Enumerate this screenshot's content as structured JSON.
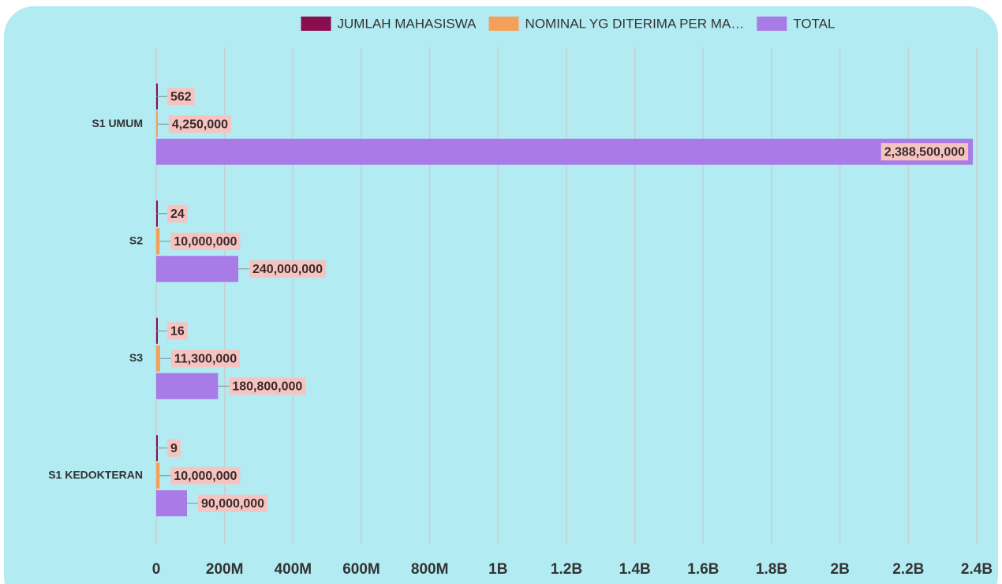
{
  "chart_data": {
    "type": "bar",
    "orientation": "horizontal",
    "categories": [
      "S1 UMUM",
      "S2",
      "S3",
      "S1 KEDOKTERAN"
    ],
    "series": [
      {
        "name": "JUMLAH MAHASISWA",
        "color": "#880e4f",
        "values": [
          562,
          24,
          16,
          9
        ],
        "value_labels": [
          "562",
          "24",
          "16",
          "9"
        ]
      },
      {
        "name": "NOMINAL YG DITERIMA PER MA…",
        "color": "#f4a05a",
        "values": [
          4250000,
          10000000,
          11300000,
          10000000
        ],
        "value_labels": [
          "4,250,000",
          "10,000,000",
          "11,300,000",
          "10,000,000"
        ]
      },
      {
        "name": "TOTAL",
        "color": "#a97be6",
        "values": [
          2388500000,
          240000000,
          180800000,
          90000000
        ],
        "value_labels": [
          "2,388,500,000",
          "240,000,000",
          "180,800,000",
          "90,000,000"
        ]
      }
    ],
    "xlim": [
      0,
      2400000000
    ],
    "xticks": [
      0,
      {
        "value": 200000000,
        "label": "200M"
      },
      {
        "value": 400000000,
        "label": "400M"
      },
      {
        "value": 600000000,
        "label": "600M"
      },
      {
        "value": 800000000,
        "label": "800M"
      },
      {
        "value": 1000000000,
        "label": "1B"
      },
      {
        "value": 1200000000,
        "label": "1.2B"
      },
      {
        "value": 1400000000,
        "label": "1.4B"
      },
      {
        "value": 1600000000,
        "label": "1.6B"
      },
      {
        "value": 1800000000,
        "label": "1.8B"
      },
      {
        "value": 2000000000,
        "label": "2B"
      },
      {
        "value": 2200000000,
        "label": "2.2B"
      },
      {
        "value": 2400000000,
        "label": "2.4B"
      }
    ],
    "grid": true,
    "legend": "top"
  }
}
